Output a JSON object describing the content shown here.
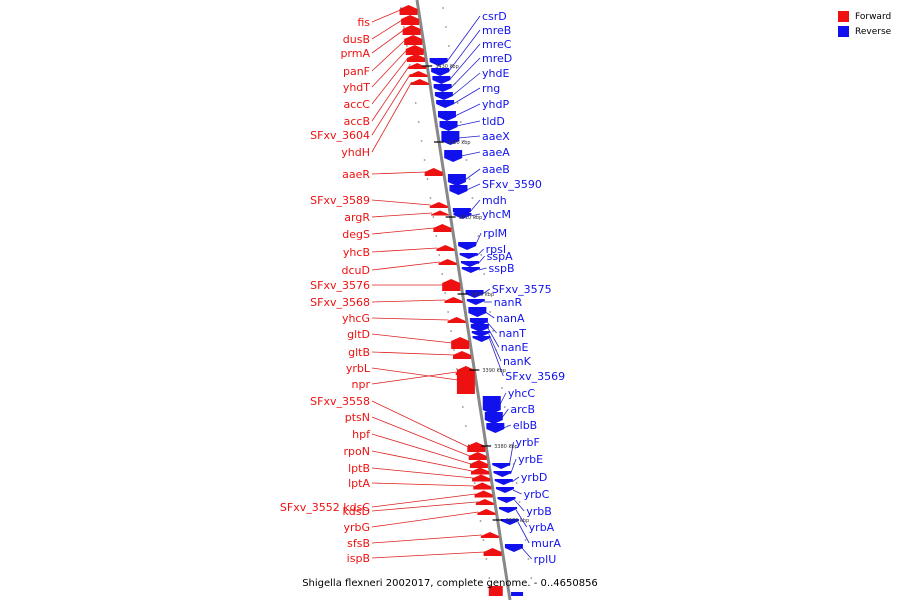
{
  "title": "Shigella flexneri 2002017, complete genome. - 0..4650856",
  "legend": [
    {
      "label": "Forward",
      "color": "#ee1111"
    },
    {
      "label": "Reverse",
      "color": "#1111ee"
    }
  ],
  "colors": {
    "forward": "#ee1111",
    "reverse": "#1111ee",
    "leader_forward": "#dd2222",
    "leader_reverse": "#2222cc",
    "backbone": "#888888"
  },
  "ticks": [
    "3430 kbp",
    "3420 kbp",
    "3410 kbp",
    "3400 kbp",
    "3390 kbp",
    "3380 kbp",
    "3370 kbp"
  ],
  "forward_genes": [
    "fis",
    "dusB",
    "prmA",
    "panF",
    "yhdT",
    "accC",
    "accB",
    "SFxv_3604",
    "yhdH",
    "aaeR",
    "SFxv_3589",
    "argR",
    "degS",
    "yhcB",
    "dcuD",
    "SFxv_3576",
    "SFxv_3568",
    "yhcG",
    "gltD",
    "gltB",
    "yrbL",
    "npr",
    "SFxv_3558",
    "ptsN",
    "hpf",
    "rpoN",
    "lptB",
    "lptA",
    "SFxv_3552 kdsC",
    "kdsD",
    "yrbG",
    "sfsB",
    "ispB"
  ],
  "reverse_genes": [
    "csrD",
    "mreB",
    "mreC",
    "mreD",
    "yhdE",
    "rng",
    "yhdP",
    "tldD",
    "aaeX",
    "aaeA",
    "aaeB",
    "SFxv_3590",
    "mdh",
    "yhcM",
    "rplM",
    "rpsI",
    "sspA",
    "sspB",
    "SFxv_3575",
    "nanR",
    "nanA",
    "nanT",
    "nanE",
    "nanK",
    "SFxv_3569",
    "yhcC",
    "arcB",
    "elbB",
    "yrbF",
    "yrbE",
    "yrbD",
    "yrbC",
    "yrbB",
    "yrbA",
    "murA",
    "rplU"
  ]
}
